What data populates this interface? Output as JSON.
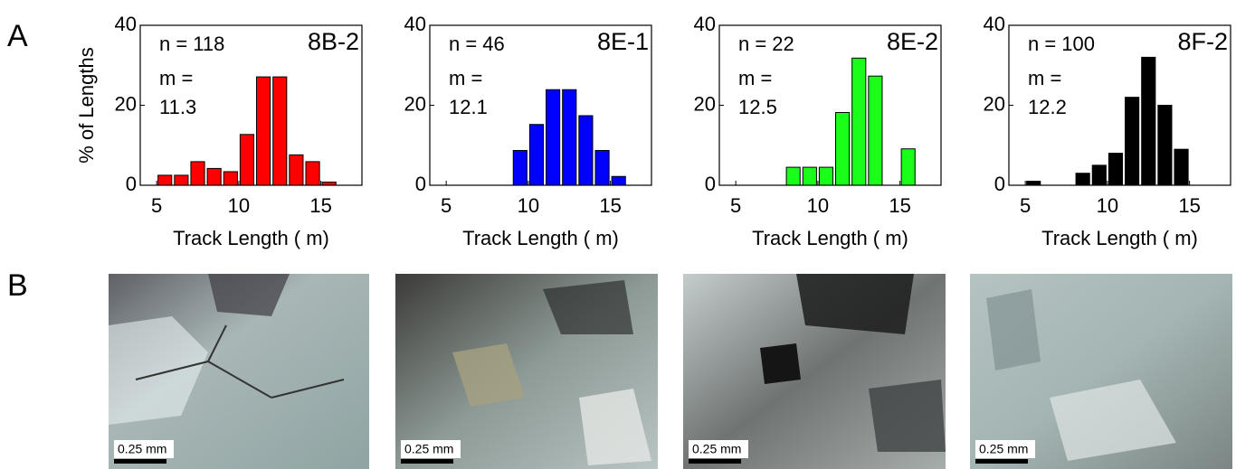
{
  "chart_data": [
    {
      "type": "histogram",
      "title": "8B-2",
      "xlabel": "Track Length (  m)",
      "ylabel": "% of Lengths",
      "annotations": [
        "n = 118",
        "m =",
        "11.3"
      ],
      "color": "#ff0000",
      "bins": [
        5,
        6,
        7,
        8,
        9,
        10,
        11,
        12,
        13,
        14,
        15,
        16
      ],
      "values": [
        2.5,
        2.5,
        5.9,
        4.2,
        3.4,
        12.7,
        27.1,
        27.1,
        7.6,
        5.9,
        0.8
      ],
      "xlim": [
        4,
        17.5
      ],
      "ylim": [
        0,
        40
      ],
      "xticks": [
        5,
        10,
        15
      ],
      "yticks": [
        0,
        20,
        40
      ]
    },
    {
      "type": "histogram",
      "title": "8E-1",
      "xlabel": "Track Length (  m)",
      "annotations": [
        "n = 46",
        "m =",
        "12.1"
      ],
      "color": "#0000ff",
      "bins": [
        5,
        6,
        7,
        8,
        9,
        10,
        11,
        12,
        13,
        14,
        15,
        16
      ],
      "values": [
        0,
        0,
        0,
        0,
        8.7,
        15.2,
        23.9,
        23.9,
        17.4,
        8.7,
        2.2
      ],
      "xlim": [
        4,
        17.5
      ],
      "ylim": [
        0,
        40
      ],
      "xticks": [
        5,
        10,
        15
      ],
      "yticks": [
        0,
        20,
        40
      ]
    },
    {
      "type": "histogram",
      "title": "8E-2",
      "xlabel": "Track Length (  m)",
      "annotations": [
        "n = 22",
        "m =",
        "12.5"
      ],
      "color": "#1aff1a",
      "bins": [
        5,
        6,
        7,
        8,
        9,
        10,
        11,
        12,
        13,
        14,
        15,
        16
      ],
      "values": [
        0,
        0,
        0,
        4.5,
        4.5,
        4.5,
        18.2,
        31.8,
        27.3,
        0,
        9.1
      ],
      "xlim": [
        4,
        17.5
      ],
      "ylim": [
        0,
        40
      ],
      "xticks": [
        5,
        10,
        15
      ],
      "yticks": [
        0,
        20,
        40
      ]
    },
    {
      "type": "histogram",
      "title": "8F-2",
      "xlabel": "Track Length (  m)",
      "annotations": [
        "n = 100",
        "m =",
        "12.2"
      ],
      "color": "#000000",
      "bins": [
        5,
        6,
        7,
        8,
        9,
        10,
        11,
        12,
        13,
        14,
        15,
        16
      ],
      "values": [
        1,
        0,
        0,
        3,
        5,
        8,
        22,
        32,
        20,
        9,
        0
      ],
      "xlim": [
        4,
        17.5
      ],
      "ylim": [
        0,
        40
      ],
      "xticks": [
        5,
        10,
        15
      ],
      "yticks": [
        0,
        20,
        40
      ]
    }
  ],
  "figure": {
    "panel_labels": [
      "A",
      "B"
    ],
    "scale_bars": [
      "0.25 mm",
      "0.25 mm",
      "0.25 mm",
      "0.25 mm"
    ]
  }
}
